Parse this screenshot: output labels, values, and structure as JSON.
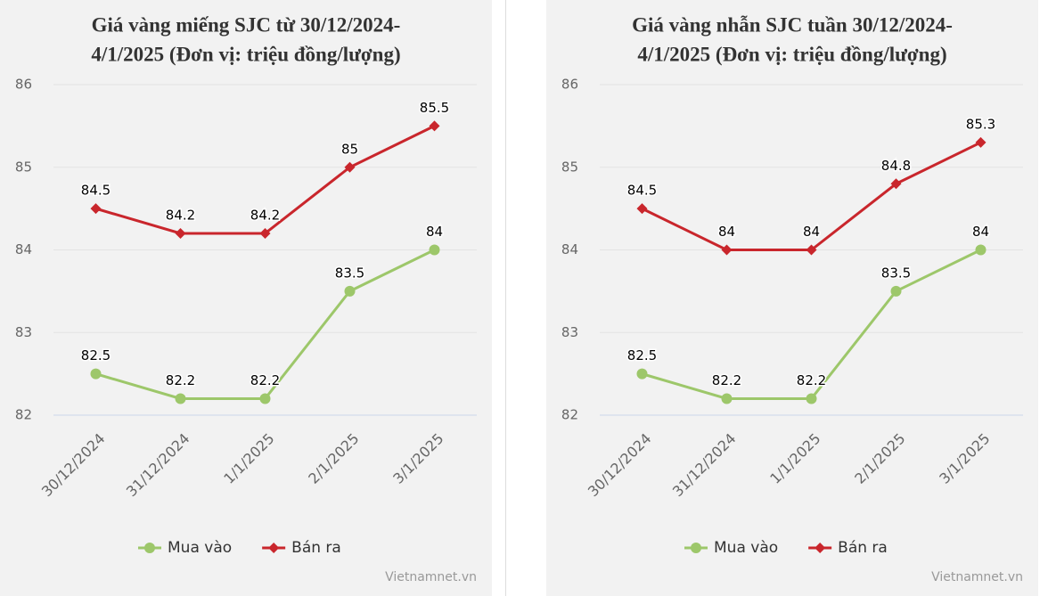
{
  "chart_data": [
    {
      "type": "line",
      "title": [
        "Giá vàng miếng SJC từ 30/12/2024-",
        "4/1/2025 (Đơn vị: triệu đồng/lượng)"
      ],
      "categories": [
        "30/12/2024",
        "31/12/2024",
        "1/1/2025",
        "2/1/2025",
        "3/1/2025"
      ],
      "series": [
        {
          "name": "Mua vào",
          "color": "#9dc76a",
          "marker": "circle",
          "values": [
            82.5,
            82.2,
            82.2,
            83.5,
            84
          ]
        },
        {
          "name": "Bán ra",
          "color": "#c9262c",
          "marker": "diamond",
          "values": [
            84.5,
            84.2,
            84.2,
            85,
            85.5
          ]
        }
      ],
      "ylim": [
        82,
        86
      ],
      "yticks": [
        82,
        83,
        84,
        85,
        86
      ],
      "grid": true,
      "legend": "bottom",
      "source": "Vietnamnet.vn"
    },
    {
      "type": "line",
      "title": [
        "Giá vàng nhẫn SJC tuần 30/12/2024-",
        "4/1/2025 (Đơn vị: triệu đồng/lượng)"
      ],
      "categories": [
        "30/12/2024",
        "31/12/2024",
        "1/1/2025",
        "2/1/2025",
        "3/1/2025"
      ],
      "series": [
        {
          "name": "Mua vào",
          "color": "#9dc76a",
          "marker": "circle",
          "values": [
            82.5,
            82.2,
            82.2,
            83.5,
            84
          ]
        },
        {
          "name": "Bán ra",
          "color": "#c9262c",
          "marker": "diamond",
          "values": [
            84.5,
            84,
            84,
            84.8,
            85.3
          ]
        }
      ],
      "ylim": [
        82,
        86
      ],
      "yticks": [
        82,
        83,
        84,
        85,
        86
      ],
      "grid": true,
      "legend": "bottom",
      "source": "Vietnamnet.vn"
    }
  ]
}
